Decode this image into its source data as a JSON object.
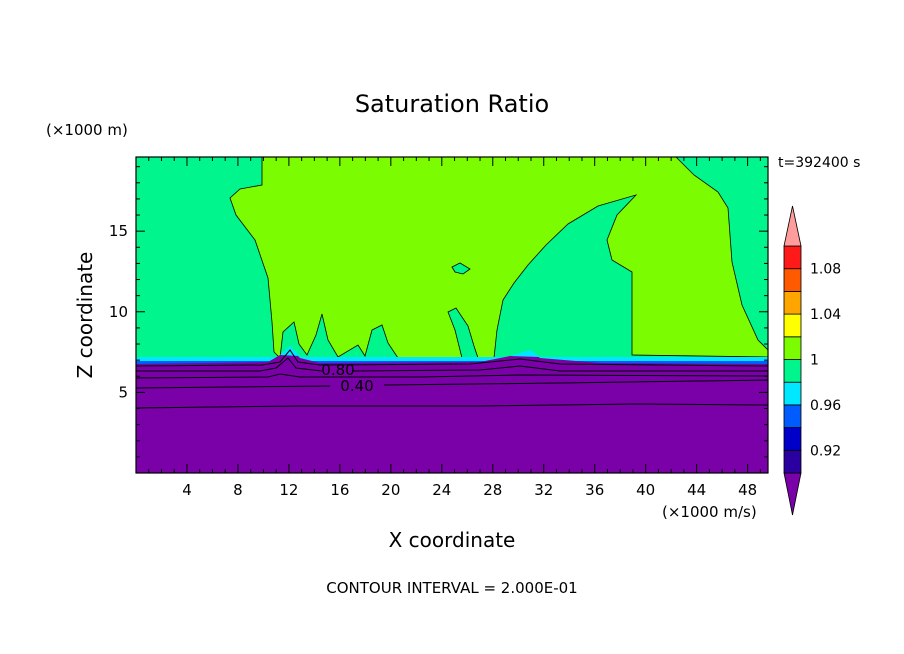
{
  "chart_data": {
    "type": "heatmap",
    "title": "Saturation Ratio",
    "xlabel": "X coordinate",
    "ylabel": "Z coordinate",
    "x_unit": "(×1000 m/s)",
    "y_unit": "(×1000 m)",
    "time_label": "t=392400 s",
    "footer": "CONTOUR INTERVAL = 2.000E-01",
    "xlim": [
      0,
      49.6
    ],
    "ylim": [
      0,
      19.6
    ],
    "x_ticks": [
      4,
      8,
      12,
      16,
      20,
      24,
      28,
      32,
      36,
      40,
      44,
      48
    ],
    "y_ticks": [
      5,
      10,
      15
    ],
    "contour_labels": [
      {
        "text": "0.80",
        "x": 16.0,
        "z": 6.7
      },
      {
        "text": "0.40",
        "x": 17.0,
        "z": 5.5
      }
    ],
    "colorbar": {
      "levels": [
        0.92,
        0.96,
        1,
        1.04,
        1.08
      ],
      "labels": [
        "0.92",
        "0.96",
        "1",
        "1.04",
        "1.08"
      ],
      "colors": [
        "#7a00a8",
        "#2a00a0",
        "#0000c8",
        "#005cff",
        "#00e8ff",
        "#00f58c",
        "#7cfc00",
        "#ffff00",
        "#ffa500",
        "#ff5a00",
        "#ff1a1a",
        "#ff9c9c"
      ]
    },
    "colors": {
      "purple": "#7a00a8",
      "cyan": "#00e8ff",
      "blue": "#005cff",
      "spring_green": "#00f58c",
      "lime": "#7cfc00"
    }
  }
}
